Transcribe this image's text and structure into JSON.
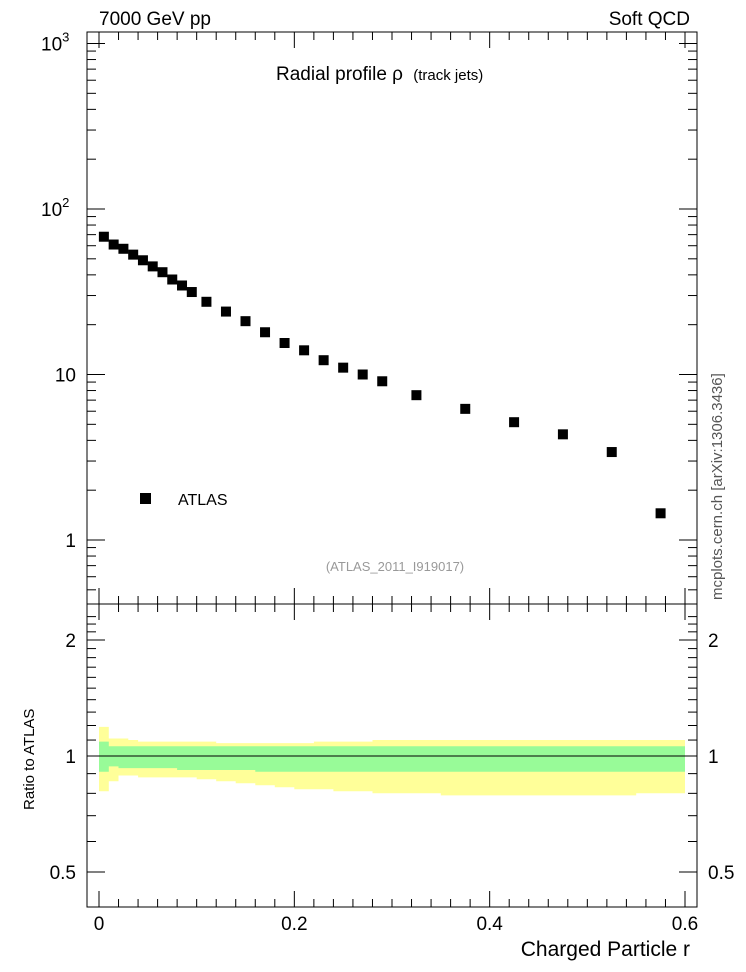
{
  "header": {
    "left": "7000 GeV pp",
    "right": "Soft QCD",
    "side": "mcplots.cern.ch [arXiv:1306.3436]"
  },
  "chart_data": [
    {
      "type": "scatter",
      "title_main": "Radial profile  ρ",
      "title_sub": "(track jets)",
      "yscale": "log",
      "xlim": [
        0,
        0.6
      ],
      "ylim": [
        0.4,
        1000
      ],
      "y_tick_labels": [
        "1",
        "10",
        "10",
        "10"
      ],
      "y_tick_exponents": [
        "",
        "",
        "2",
        "3"
      ],
      "legend": "ATLAS",
      "legend_position": "lower-left",
      "annotation": "(ATLAS_2011_I919017)",
      "series": [
        {
          "name": "ATLAS",
          "x": [
            0.005,
            0.015,
            0.025,
            0.035,
            0.045,
            0.055,
            0.065,
            0.075,
            0.085,
            0.095,
            0.11,
            0.13,
            0.15,
            0.17,
            0.19,
            0.21,
            0.23,
            0.25,
            0.27,
            0.29,
            0.325,
            0.375,
            0.425,
            0.475,
            0.525,
            0.575
          ],
          "y": [
            68,
            61,
            57.5,
            53,
            49,
            45,
            41.5,
            37.5,
            34.5,
            31.5,
            27.5,
            24,
            21,
            18,
            15.5,
            14,
            12.2,
            11,
            10,
            9.1,
            7.5,
            6.2,
            5.15,
            4.35,
            3.4,
            1.45
          ]
        }
      ]
    },
    {
      "type": "area",
      "ylabel": "Ratio to ATLAS",
      "xlabel": "Charged Particle r",
      "xlim": [
        0,
        0.6
      ],
      "ylim": [
        0.32,
        2.35
      ],
      "x_tick_labels": [
        "0",
        "0.2",
        "0.4",
        "0.6"
      ],
      "y_tick_labels": [
        "0.5",
        "1",
        "2"
      ],
      "reference": 1,
      "bin_edges": [
        0,
        0.01,
        0.02,
        0.03,
        0.04,
        0.05,
        0.06,
        0.07,
        0.08,
        0.09,
        0.1,
        0.12,
        0.14,
        0.16,
        0.18,
        0.2,
        0.22,
        0.24,
        0.26,
        0.28,
        0.3,
        0.35,
        0.4,
        0.45,
        0.5,
        0.55,
        0.6
      ],
      "bands": [
        {
          "name": "stat",
          "color": "#98fb98",
          "lo": [
            0.91,
            0.94,
            0.93,
            0.93,
            0.93,
            0.93,
            0.93,
            0.93,
            0.92,
            0.92,
            0.92,
            0.92,
            0.92,
            0.91,
            0.91,
            0.91,
            0.91,
            0.91,
            0.91,
            0.91,
            0.91,
            0.91,
            0.91,
            0.91,
            0.91,
            0.91
          ],
          "hi": [
            1.09,
            1.06,
            1.06,
            1.06,
            1.06,
            1.06,
            1.06,
            1.06,
            1.06,
            1.06,
            1.06,
            1.06,
            1.06,
            1.06,
            1.06,
            1.06,
            1.06,
            1.06,
            1.06,
            1.06,
            1.06,
            1.06,
            1.06,
            1.06,
            1.06,
            1.06
          ]
        },
        {
          "name": "total",
          "color": "#ffff99",
          "lo": [
            0.81,
            0.86,
            0.89,
            0.89,
            0.88,
            0.88,
            0.88,
            0.88,
            0.88,
            0.88,
            0.87,
            0.86,
            0.85,
            0.84,
            0.83,
            0.82,
            0.82,
            0.81,
            0.81,
            0.8,
            0.8,
            0.79,
            0.79,
            0.79,
            0.79,
            0.8
          ],
          "hi": [
            1.19,
            1.11,
            1.11,
            1.1,
            1.09,
            1.09,
            1.09,
            1.09,
            1.09,
            1.09,
            1.09,
            1.08,
            1.08,
            1.08,
            1.08,
            1.08,
            1.09,
            1.09,
            1.09,
            1.1,
            1.1,
            1.1,
            1.1,
            1.1,
            1.1,
            1.1
          ]
        }
      ]
    }
  ]
}
